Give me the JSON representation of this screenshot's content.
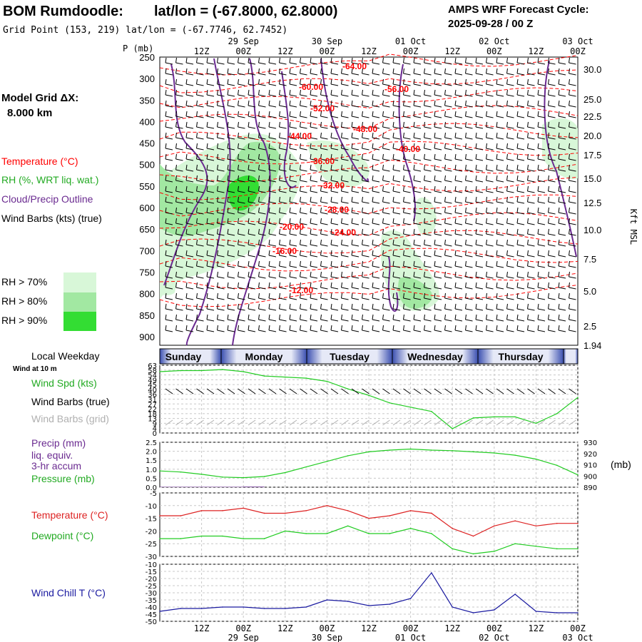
{
  "header": {
    "station": "BOM Rumdoodle:",
    "latlon": "lat/lon = (-67.8000, 62.8000)",
    "gridpoint": "Grid Point (153, 219) lat/lon = (-67.7746, 62.7452)",
    "forecast_title": "AMPS WRF Forecast Cycle:",
    "forecast_cycle": "2025-09-28 / 00  Z"
  },
  "model_grid": {
    "label": "Model Grid ΔX:",
    "value": "8.000 km"
  },
  "legend_left": {
    "temperature": "Temperature (°C)",
    "rh": "RH (%, WRT liq. wat.)",
    "cloud": "Cloud/Precip Outline",
    "wind": "Wind Barbs (kts) (true)",
    "rh70": "RH > 70%",
    "rh80": "RH > 80%",
    "rh90": "RH > 90%"
  },
  "colors": {
    "temperature": "#ff0000",
    "rh": "#22cc22",
    "cloud": "#6a2a90",
    "wind": "#000000",
    "rh70": "#d8f7d8",
    "rh80": "#a2e8a2",
    "rh90": "#33dd33",
    "windchill": "#1a1aa0"
  },
  "time_axis": {
    "hour_labels": [
      "12Z",
      "00Z",
      "12Z",
      "00Z",
      "12Z",
      "00Z",
      "12Z",
      "00Z",
      "12Z",
      "00Z"
    ],
    "date_labels": [
      "29 Sep",
      "30 Sep",
      "01 Oct",
      "02 Oct",
      "03 Oct"
    ]
  },
  "pressure_axis": {
    "title": "P (mb)",
    "ticks": [
      "250",
      "300",
      "350",
      "400",
      "450",
      "500",
      "550",
      "600",
      "650",
      "700",
      "750",
      "800",
      "850",
      "900"
    ]
  },
  "height_axis": {
    "title": "Kft MSL",
    "ticks": [
      "30.0",
      "25.0",
      "22.5",
      "20.0",
      "17.5",
      "15.0",
      "12.5",
      "10.0",
      "7.5",
      "5.0",
      "2.5",
      "1.94"
    ]
  },
  "weekdays": {
    "title": "Local Weekday",
    "days": [
      "Sunday",
      "Monday",
      "Tuesday",
      "Wednesday",
      "Thursday"
    ]
  },
  "panel_labels": {
    "wind_at": "Wind at 10 m",
    "wind_spd": "Wind Spd (kts)",
    "wind_barbs_true": "Wind Barbs (true)",
    "wind_barbs_grid": "Wind Barbs (grid)",
    "precip1": "Precip (mm)",
    "precip2": "liq. equiv.",
    "precip3": "3-hr accum",
    "pressure": "Pressure (mb)",
    "pressure_unit": "(mb)",
    "temperature": "Temperature (°C)",
    "dewpoint": "Dewpoint (°C)",
    "windchill": "Wind Chill T (°C)"
  },
  "chart_data": [
    {
      "type": "line",
      "title": "Temperature contours (°C)",
      "contour_labels": [
        "-64.00",
        "-60.00",
        "-56.00",
        "-52.00",
        "-48.00",
        "-44.00",
        "-40.00",
        "-36.00",
        "-32.00",
        "-28.00",
        "-24.00",
        "-20.00",
        "-16.00",
        "-12.00"
      ],
      "ylabel": "P (mb)",
      "ylim": [
        250,
        920
      ]
    },
    {
      "type": "line",
      "title": "Wind Spd (kts)",
      "ylim": [
        0,
        63
      ],
      "yticks": [
        "63",
        "58",
        "54",
        "49",
        "45",
        "40",
        "36",
        "31",
        "27",
        "22",
        "18",
        "13",
        "9",
        "4",
        "0"
      ],
      "x_hours": [
        0,
        6,
        12,
        18,
        24,
        30,
        36,
        42,
        48,
        54,
        60,
        66,
        72,
        78,
        84,
        90,
        96,
        102,
        108,
        114,
        120
      ],
      "series": [
        {
          "name": "Wind Spd (kts)",
          "values": [
            57,
            58,
            58,
            59,
            57,
            53,
            52,
            51,
            48,
            41,
            35,
            28,
            24,
            20,
            4,
            14,
            15,
            15,
            9,
            18,
            33
          ]
        }
      ]
    },
    {
      "type": "line",
      "title": "Precip / Pressure",
      "ylim_left": [
        0,
        2.5
      ],
      "yticks_left": [
        "2.5",
        "2.0",
        "1.5",
        "1.0",
        "0.5",
        "0.0"
      ],
      "ylim_right": [
        890,
        930
      ],
      "yticks_right": [
        "930",
        "920",
        "910",
        "900",
        "890"
      ],
      "x_hours": [
        0,
        6,
        12,
        18,
        24,
        30,
        36,
        42,
        48,
        54,
        60,
        66,
        72,
        78,
        84,
        90,
        96,
        102,
        108,
        114,
        120
      ],
      "series": [
        {
          "name": "Pressure (mb)",
          "values": [
            904.5,
            903.5,
            901.5,
            899,
            898.5,
            899.5,
            903,
            908,
            913,
            918,
            921.5,
            923,
            924,
            923,
            922.5,
            921.5,
            920.5,
            918.5,
            915,
            909.5,
            901
          ]
        },
        {
          "name": "Precip (mm)",
          "values": [
            0.02,
            0.02,
            0.02,
            0.02,
            0.03,
            0,
            0,
            0,
            0,
            0,
            0,
            0,
            0,
            0,
            0,
            0,
            0,
            0,
            0,
            0,
            0
          ]
        }
      ]
    },
    {
      "type": "line",
      "title": "Temperature / Dewpoint (°C)",
      "ylim": [
        -30,
        -5
      ],
      "yticks": [
        "-5",
        "-10",
        "-15",
        "-20",
        "-25",
        "-30"
      ],
      "x_hours": [
        0,
        6,
        12,
        18,
        24,
        30,
        36,
        42,
        48,
        54,
        60,
        66,
        72,
        78,
        84,
        90,
        96,
        102,
        108,
        114,
        120
      ],
      "series": [
        {
          "name": "Temperature (°C)",
          "values": [
            -14,
            -14,
            -12,
            -12,
            -11,
            -13,
            -13,
            -12,
            -10,
            -12,
            -15,
            -14,
            -12,
            -13,
            -19,
            -22,
            -18,
            -16,
            -18,
            -17,
            -17
          ]
        },
        {
          "name": "Dewpoint (°C)",
          "values": [
            -23,
            -23,
            -22,
            -22,
            -23,
            -23,
            -20,
            -21,
            -21,
            -18,
            -21,
            -21,
            -19,
            -21,
            -27,
            -29,
            -28,
            -25,
            -26,
            -27,
            -27
          ]
        }
      ]
    },
    {
      "type": "line",
      "title": "Wind Chill T (°C)",
      "ylim": [
        -50,
        -10
      ],
      "yticks": [
        "-10",
        "-15",
        "-20",
        "-25",
        "-30",
        "-35",
        "-40",
        "-45",
        "-50"
      ],
      "x_hours": [
        0,
        6,
        12,
        18,
        24,
        30,
        36,
        42,
        48,
        54,
        60,
        66,
        72,
        78,
        84,
        90,
        96,
        102,
        108,
        114,
        120
      ],
      "series": [
        {
          "name": "Wind Chill T (°C)",
          "values": [
            -43,
            -41,
            -41,
            -40,
            -40,
            -41,
            -41,
            -40,
            -35,
            -36,
            -39,
            -38,
            -34,
            -16,
            -40,
            -44,
            -42,
            -31,
            -43,
            -44,
            -44
          ]
        }
      ]
    }
  ]
}
